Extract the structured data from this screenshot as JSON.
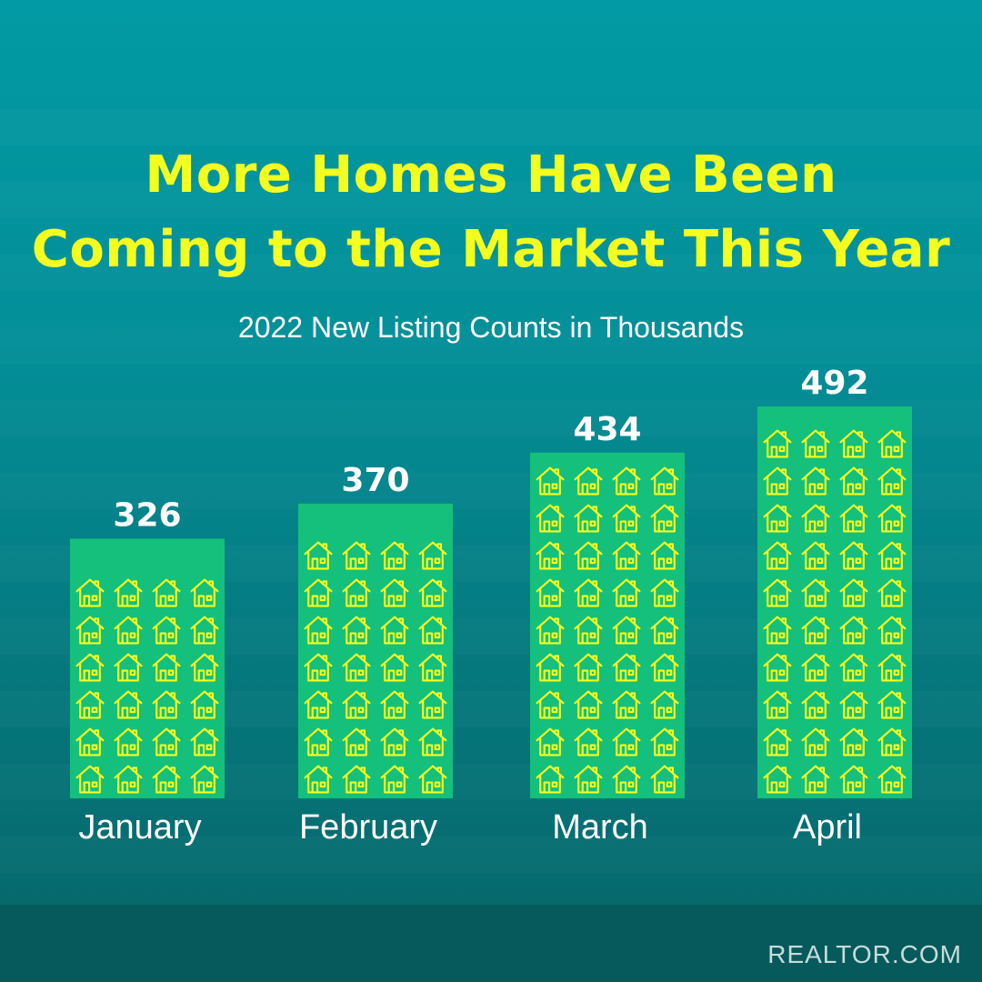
{
  "title_line_1": "More Homes Have Been",
  "title_line_2": "Coming to the Market This Year",
  "subtitle": "2022 New Listing Counts in Thousands",
  "brand": "REALTOR.COM",
  "colors": {
    "title": "#f5ff1f",
    "bar_fill": "#14c07c",
    "house_icon": "#f5ff1f",
    "label_text": "#ffffff"
  },
  "icon": "house-icon",
  "chart_data": {
    "type": "bar",
    "title": "More Homes Have Been Coming to the Market This Year",
    "subtitle": "2022 New Listing Counts in Thousands",
    "categories": [
      "January",
      "February",
      "March",
      "April"
    ],
    "values": [
      326,
      370,
      434,
      492
    ],
    "data_labels": [
      "326",
      "370",
      "434",
      "492"
    ],
    "ylim": [
      0,
      492
    ],
    "grid": false,
    "legend": "none"
  }
}
